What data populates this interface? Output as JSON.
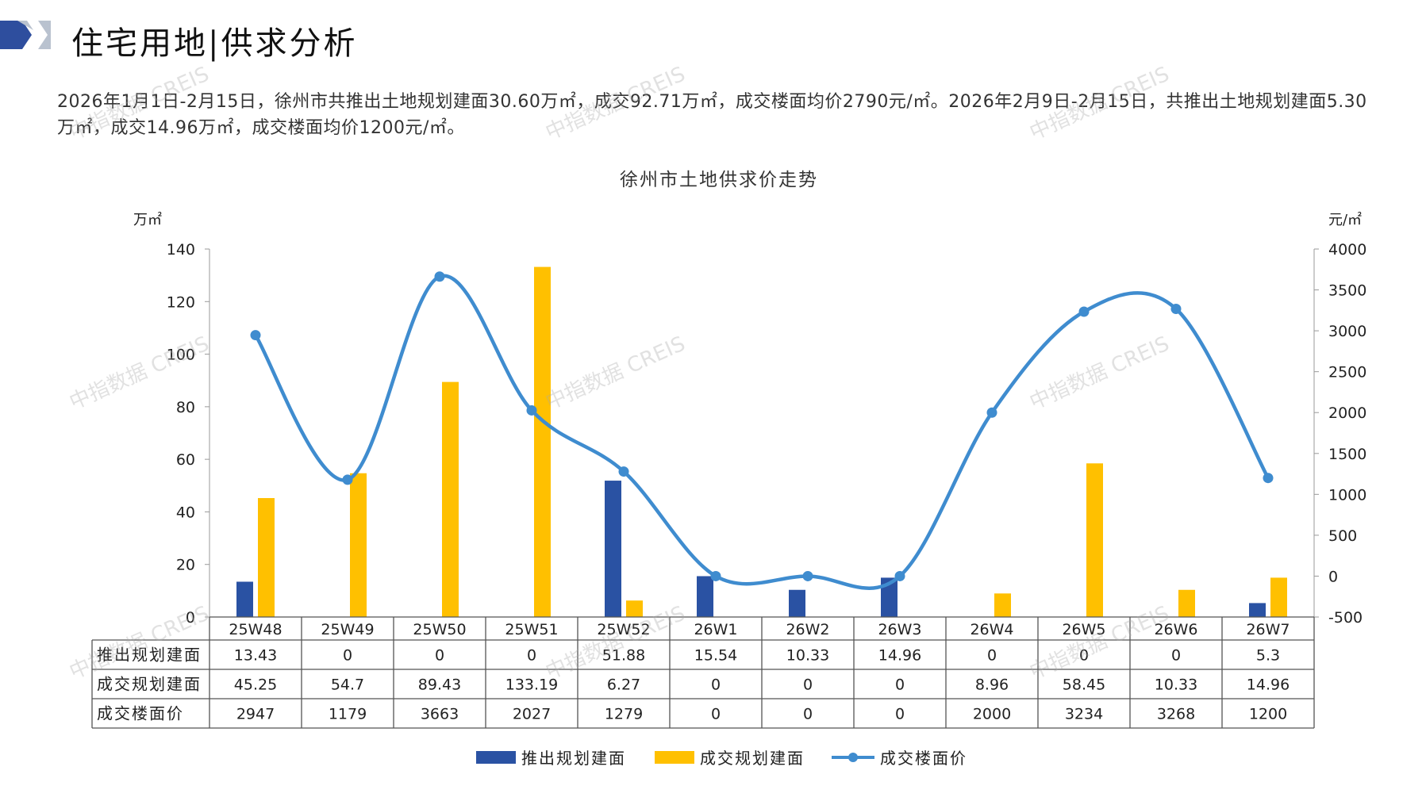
{
  "header": {
    "title": "住宅用地|供求分析"
  },
  "summary": {
    "text": "2026年1月1日-2月15日，徐州市共推出土地规划建面30.60万㎡，成交92.71万㎡，成交楼面均价2790元/㎡。2026年2月9日-2月15日，共推出土地规划建面5.30万㎡，成交14.96万㎡，成交楼面均价1200元/㎡。"
  },
  "watermark": "中指数据 CREIS",
  "colors": {
    "supply_bar": "#2A52A3",
    "deal_bar": "#FFC000",
    "price_line": "#3F8CCF",
    "brand_dark": "#2E4E9E",
    "brand_light": "#B9C2CF"
  },
  "chart_data": {
    "type": "bar+line",
    "title": "徐州市土地供求价走势",
    "y_left_unit": "万㎡",
    "y_right_unit": "元/㎡",
    "y_left_ticks": [
      0,
      20,
      40,
      60,
      80,
      100,
      120,
      140
    ],
    "y_right_ticks": [
      -500,
      0,
      500,
      1000,
      1500,
      2000,
      2500,
      3000,
      3500,
      4000
    ],
    "y_left_range": [
      0,
      140
    ],
    "y_right_range": [
      -500,
      4000
    ],
    "categories": [
      "25W48",
      "25W49",
      "25W50",
      "25W51",
      "25W52",
      "26W1",
      "26W2",
      "26W3",
      "26W4",
      "26W5",
      "26W6",
      "26W7"
    ],
    "series": [
      {
        "name": "推出规划建面",
        "kind": "bar",
        "axis": "left",
        "values": [
          13.43,
          0,
          0,
          0,
          51.88,
          15.54,
          10.33,
          14.96,
          0,
          0,
          0,
          5.3
        ],
        "labels": [
          "13.43",
          "0",
          "0",
          "0",
          "51.88",
          "15.54",
          "10.33",
          "14.96",
          "0",
          "0",
          "0",
          "5.3"
        ]
      },
      {
        "name": "成交规划建面",
        "kind": "bar",
        "axis": "left",
        "values": [
          45.25,
          54.7,
          89.43,
          133.19,
          6.27,
          0,
          0,
          0,
          8.96,
          58.45,
          10.33,
          14.96
        ],
        "labels": [
          "45.25",
          "54.7",
          "89.43",
          "133.19",
          "6.27",
          "0",
          "0",
          "0",
          "8.96",
          "58.45",
          "10.33",
          "14.96"
        ]
      },
      {
        "name": "成交楼面价",
        "kind": "line",
        "axis": "right",
        "values": [
          2947,
          1179,
          3663,
          2027,
          1279,
          0,
          0,
          0,
          2000,
          3234,
          3268,
          1200
        ],
        "labels": [
          "2947",
          "1179",
          "3663",
          "2027",
          "1279",
          "0",
          "0",
          "0",
          "2000",
          "3234",
          "3268",
          "1200"
        ]
      }
    ],
    "legend_position": "bottom",
    "grid": false,
    "data_table": true
  }
}
